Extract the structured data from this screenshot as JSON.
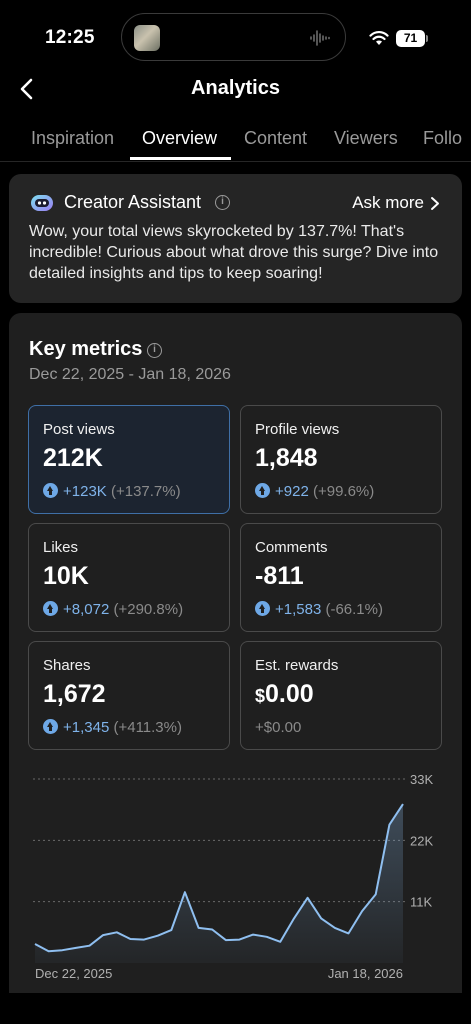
{
  "status_bar": {
    "time": "12:25",
    "battery": "71"
  },
  "header": {
    "title": "Analytics"
  },
  "tabs": [
    {
      "label": "Inspiration",
      "active": false
    },
    {
      "label": "Overview",
      "active": true
    },
    {
      "label": "Content",
      "active": false
    },
    {
      "label": "Viewers",
      "active": false
    },
    {
      "label": "Follo",
      "active": false
    }
  ],
  "assistant": {
    "title": "Creator Assistant",
    "ask_more": "Ask more",
    "message": "Wow, your total views skyrocketed by 137.7%! That's incredible! Curious about what drove this surge? Dive into detailed insights and tips to keep soaring!"
  },
  "key_metrics": {
    "title": "Key metrics",
    "date_range": "Dec 22, 2025 - Jan 18, 2026",
    "cards": [
      {
        "label": "Post views",
        "value": "212K",
        "change": "+123K",
        "pct": "(+137.7%)",
        "selected": true
      },
      {
        "label": "Profile views",
        "value": "1,848",
        "change": "+922",
        "pct": "(+99.6%)",
        "selected": false
      },
      {
        "label": "Likes",
        "value": "10K",
        "change": "+8,072",
        "pct": "(+290.8%)",
        "selected": false
      },
      {
        "label": "Comments",
        "value": "-811",
        "change": "+1,583",
        "pct": "(-66.1%)",
        "selected": false
      },
      {
        "label": "Shares",
        "value": "1,672",
        "change": "+1,345",
        "pct": "(+411.3%)",
        "selected": false
      },
      {
        "label": "Est. rewards",
        "currency": "$",
        "value": "0.00",
        "change": "+$0.00",
        "pct": "",
        "selected": false
      }
    ]
  },
  "chart_data": {
    "type": "area",
    "x_start_label": "Dec 22, 2025",
    "x_end_label": "Jan 18, 2026",
    "y_ticks": [
      {
        "value": 11000,
        "label": "11K"
      },
      {
        "value": 22000,
        "label": "22K"
      },
      {
        "value": 33000,
        "label": "33K"
      }
    ],
    "ylim": [
      0,
      33000
    ],
    "grid": true,
    "color": "#8fbff0",
    "values": [
      3400,
      2100,
      2300,
      2700,
      3100,
      5000,
      5500,
      4300,
      4200,
      4900,
      5900,
      12700,
      6300,
      6000,
      4100,
      4200,
      5100,
      4700,
      3800,
      8000,
      11700,
      8000,
      6300,
      5300,
      9300,
      12300,
      24800,
      28500
    ]
  }
}
